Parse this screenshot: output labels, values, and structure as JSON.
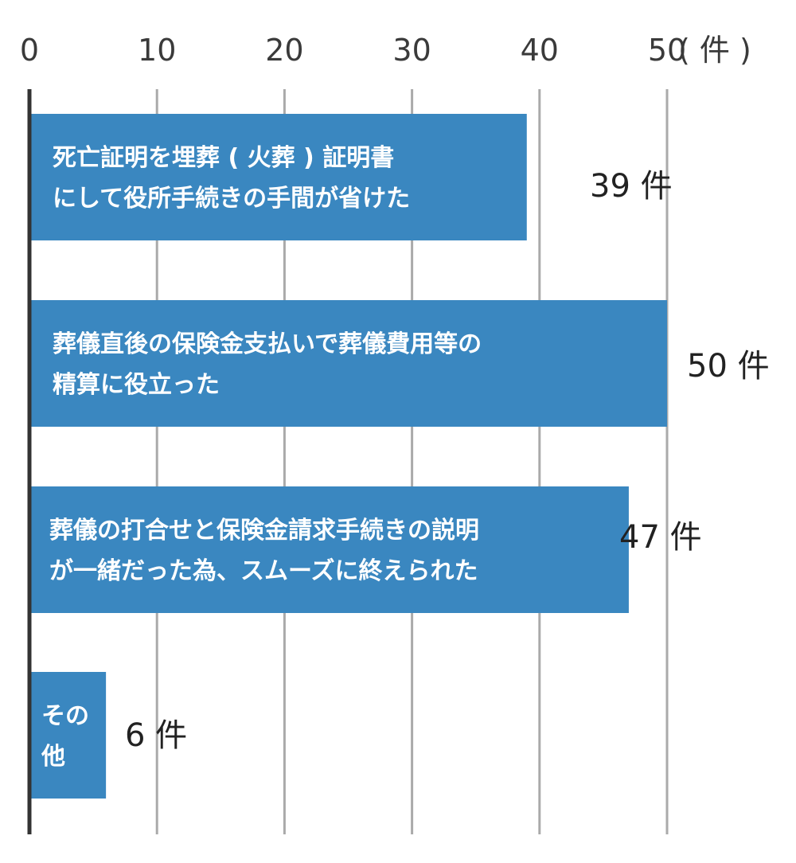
{
  "chart_data": {
    "type": "bar",
    "orientation": "horizontal",
    "unit_label": "( 件 )",
    "xlim": [
      0,
      50
    ],
    "ticks": [
      "0",
      "10",
      "20",
      "30",
      "40",
      "50"
    ],
    "grid": true,
    "bar_color": "#3a87c0",
    "grid_color": "#aaaaaa",
    "axis_color": "#333333",
    "categories": [
      [
        "死亡証明を埋葬 ( 火葬 ) 証明書",
        "にして役所手続きの手間が省けた"
      ],
      [
        "葬儀直後の保険金支払いで葬儀費用等の",
        "精算に役立った"
      ],
      [
        "葬儀の打合せと保険金請求手続きの説明",
        "が一緒だった為、スムーズに終えられた"
      ],
      [
        "その",
        "他"
      ]
    ],
    "values": [
      39,
      50,
      47,
      6
    ],
    "value_labels": [
      "39 件",
      "50 件",
      "47 件",
      "6 件"
    ]
  }
}
